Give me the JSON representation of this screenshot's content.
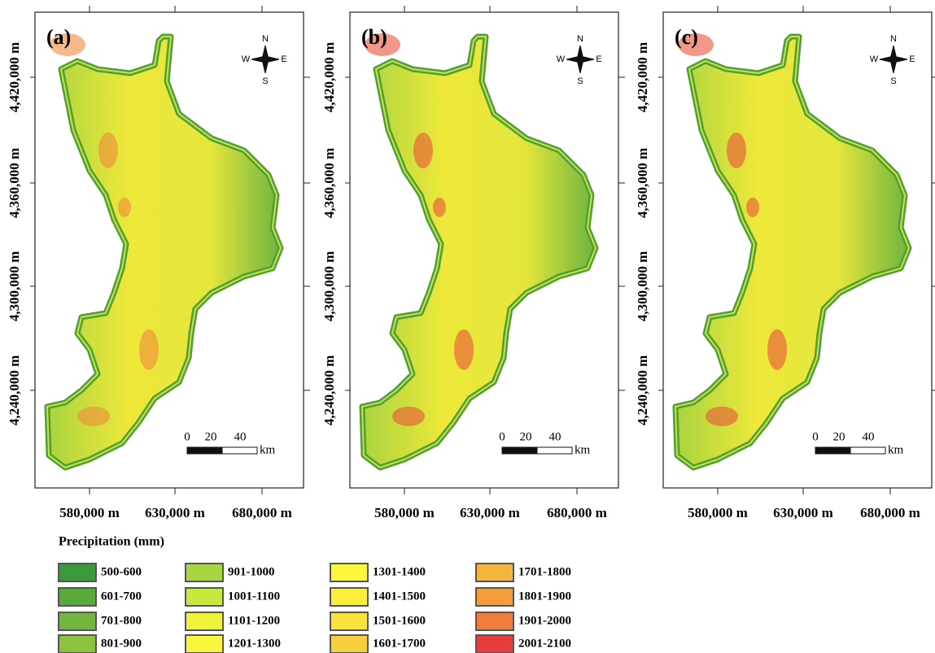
{
  "panels": [
    {
      "label": "(a)"
    },
    {
      "label": "(b)"
    },
    {
      "label": "(c)"
    }
  ],
  "axes": {
    "x_ticks": [
      "580,000 m",
      "630,000 m",
      "680,000 m"
    ],
    "y_ticks": [
      "4,420,000 m",
      "4,360,000 m",
      "4,300,000 m",
      "4,240,000 m"
    ]
  },
  "compass": {
    "n": "N",
    "e": "E",
    "s": "S",
    "w": "W"
  },
  "scale_bar": {
    "labels": [
      "0",
      "20",
      "40"
    ],
    "unit": "km"
  },
  "legend": {
    "title": "Precipitation (mm)",
    "items": [
      {
        "label": "500-600",
        "color": "#3a9a3a"
      },
      {
        "label": "601-700",
        "color": "#5aaa3a"
      },
      {
        "label": "701-800",
        "color": "#72b540"
      },
      {
        "label": "801-900",
        "color": "#8cc43e"
      },
      {
        "label": "901-1000",
        "color": "#a8d640"
      },
      {
        "label": "1001-1100",
        "color": "#c8e83e"
      },
      {
        "label": "1101-1200",
        "color": "#eef23a"
      },
      {
        "label": "1201-1300",
        "color": "#f8f53a"
      },
      {
        "label": "1301-1400",
        "color": "#fcf73a"
      },
      {
        "label": "1401-1500",
        "color": "#fbee3c"
      },
      {
        "label": "1501-1600",
        "color": "#f8e33c"
      },
      {
        "label": "1601-1700",
        "color": "#f5d03a"
      },
      {
        "label": "1701-1800",
        "color": "#f5b53a"
      },
      {
        "label": "1801-1900",
        "color": "#f59d3a"
      },
      {
        "label": "1901-2000",
        "color": "#f07d3a"
      },
      {
        "label": "2001-2100",
        "color": "#e83c3c"
      }
    ]
  }
}
